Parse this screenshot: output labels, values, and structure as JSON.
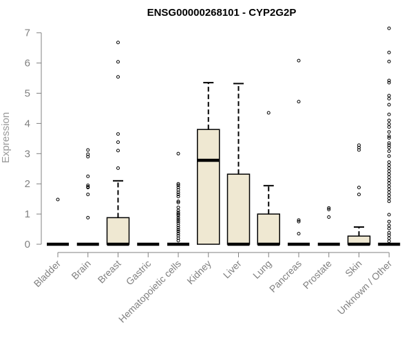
{
  "chart_data": {
    "type": "boxplot",
    "title": "ENSG00000268101 - CYP2G2P",
    "xlabel": "",
    "ylabel": "Expression",
    "ylim": [
      0,
      7.3
    ],
    "yticks": [
      0,
      1,
      2,
      3,
      4,
      5,
      6,
      7
    ],
    "box_fill": "#efe8d2",
    "categories": [
      "Bladder",
      "Brain",
      "Breast",
      "Gastric",
      "Hematopoietic cells",
      "Kidney",
      "Liver",
      "Lung",
      "Pancreas",
      "Prostate",
      "Skin",
      "Unknown / Other"
    ],
    "boxes": [
      {
        "name": "Bladder",
        "q1": 0,
        "median": 0,
        "q3": 0,
        "whisker_low": 0,
        "whisker_high": 0,
        "outliers": [
          1.48
        ]
      },
      {
        "name": "Brain",
        "q1": 0,
        "median": 0,
        "q3": 0,
        "whisker_low": 0,
        "whisker_high": 0,
        "outliers": [
          3.12,
          2.98,
          2.9,
          2.25,
          1.95,
          1.9,
          1.88,
          1.65,
          0.88
        ]
      },
      {
        "name": "Breast",
        "q1": 0,
        "median": 0,
        "q3": 0.88,
        "whisker_low": 0,
        "whisker_high": 2.1,
        "outliers": [
          6.68,
          6.04,
          5.54,
          3.65,
          3.38,
          3.1,
          2.52
        ]
      },
      {
        "name": "Gastric",
        "q1": 0,
        "median": 0,
        "q3": 0,
        "whisker_low": 0,
        "whisker_high": 0,
        "outliers": []
      },
      {
        "name": "Hematopoietic cells",
        "q1": 0,
        "median": 0,
        "q3": 0,
        "whisker_low": 0,
        "whisker_high": 0,
        "outliers": [
          3.0,
          2.0,
          1.95,
          1.88,
          1.8,
          1.72,
          1.65,
          1.58,
          1.42,
          1.38,
          1.22,
          1.12,
          1.05,
          1.0,
          0.95,
          0.88,
          0.82,
          0.76,
          0.7,
          0.62,
          0.55,
          0.48,
          0.42,
          0.35,
          0.28,
          0.2,
          0.12
        ]
      },
      {
        "name": "Kidney",
        "q1": 0,
        "median": 2.78,
        "q3": 3.8,
        "whisker_low": 0,
        "whisker_high": 5.35,
        "outliers": []
      },
      {
        "name": "Liver",
        "q1": 0,
        "median": 0,
        "q3": 2.32,
        "whisker_low": 0,
        "whisker_high": 5.32,
        "outliers": []
      },
      {
        "name": "Lung",
        "q1": 0,
        "median": 0,
        "q3": 1.0,
        "whisker_low": 0,
        "whisker_high": 1.94,
        "outliers": [
          4.35
        ]
      },
      {
        "name": "Pancreas",
        "q1": 0,
        "median": 0,
        "q3": 0,
        "whisker_low": 0,
        "whisker_high": 0,
        "outliers": [
          6.08,
          4.72,
          0.8,
          0.75,
          0.35
        ]
      },
      {
        "name": "Prostate",
        "q1": 0,
        "median": 0,
        "q3": 0,
        "whisker_low": 0,
        "whisker_high": 0,
        "outliers": [
          1.2,
          1.15,
          0.9
        ]
      },
      {
        "name": "Skin",
        "q1": 0,
        "median": 0,
        "q3": 0.27,
        "whisker_low": 0,
        "whisker_high": 0.57,
        "outliers": [
          3.28,
          3.2,
          3.12,
          1.88,
          1.65
        ]
      },
      {
        "name": "Unknown / Other",
        "q1": 0,
        "median": 0,
        "q3": 0,
        "whisker_low": 0,
        "whisker_high": 0,
        "outliers": [
          7.15,
          6.35,
          6.05,
          5.42,
          5.35,
          4.92,
          4.82,
          4.62,
          4.3,
          4.1,
          3.98,
          3.88,
          3.72,
          3.58,
          3.52,
          3.35,
          3.28,
          3.2,
          3.08,
          2.92,
          2.72,
          2.62,
          2.52,
          2.42,
          2.32,
          2.22,
          2.12,
          2.02,
          1.92,
          1.82,
          1.72,
          1.62,
          1.52,
          1.42,
          0.98,
          0.75,
          0.62,
          0.52,
          0.38,
          0.3,
          0.2,
          0.1
        ]
      }
    ]
  }
}
